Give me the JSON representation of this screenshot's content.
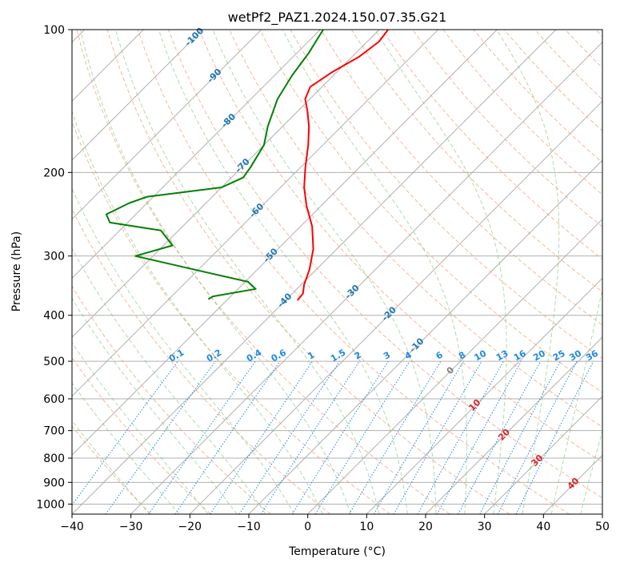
{
  "chart_data": {
    "type": "line",
    "diagram": "skew-T log-P",
    "title": "wetPf2_PAZ1.2024.150.07.35.G21",
    "xlabel": "Temperature (°C)",
    "ylabel": "Pressure (hPa)",
    "xlim": [
      -40,
      50
    ],
    "ylim": [
      1050,
      100
    ],
    "y_scale": "log",
    "x_ticks": [
      -40,
      -30,
      -20,
      -10,
      0,
      10,
      20,
      30,
      40,
      50
    ],
    "y_ticks": [
      100,
      200,
      300,
      400,
      500,
      600,
      700,
      800,
      900,
      1000
    ],
    "grid": true,
    "colors": {
      "temperature": "#ff0000",
      "dewpoint": "#008000",
      "isotherm": "#b0b0b0",
      "dry_adiabat": "#f4a582",
      "moist_adiabat": "#74c476",
      "mixing_ratio": "#1e88e5",
      "isotherm_label_negative": "#1f77b4",
      "isotherm_label_positive": "#d62728",
      "zero_isotherm_label": "#808080"
    },
    "series": [
      {
        "role": "temperature",
        "points": [
          {
            "p": 372,
            "t": -38.0
          },
          {
            "p": 360,
            "t": -38.2
          },
          {
            "p": 345,
            "t": -39.5
          },
          {
            "p": 320,
            "t": -41.2
          },
          {
            "p": 290,
            "t": -44.0
          },
          {
            "p": 260,
            "t": -48.0
          },
          {
            "p": 235,
            "t": -52.5
          },
          {
            "p": 215,
            "t": -56.0
          },
          {
            "p": 195,
            "t": -59.2
          },
          {
            "p": 175,
            "t": -62.5
          },
          {
            "p": 160,
            "t": -65.5
          },
          {
            "p": 148,
            "t": -68.5
          },
          {
            "p": 140,
            "t": -70.8
          },
          {
            "p": 132,
            "t": -72.0
          },
          {
            "p": 123,
            "t": -70.8
          },
          {
            "p": 114,
            "t": -68.8
          },
          {
            "p": 106,
            "t": -68.0
          },
          {
            "p": 100,
            "t": -68.5
          }
        ]
      },
      {
        "role": "dewpoint",
        "points": [
          {
            "p": 370,
            "t": -53.3
          },
          {
            "p": 365,
            "t": -53.0
          },
          {
            "p": 352,
            "t": -47.0
          },
          {
            "p": 340,
            "t": -49.5
          },
          {
            "p": 325,
            "t": -58.0
          },
          {
            "p": 300,
            "t": -73.0
          },
          {
            "p": 285,
            "t": -68.5
          },
          {
            "p": 265,
            "t": -73.0
          },
          {
            "p": 255,
            "t": -83.0
          },
          {
            "p": 245,
            "t": -85.0
          },
          {
            "p": 232,
            "t": -83.0
          },
          {
            "p": 225,
            "t": -81.0
          },
          {
            "p": 215,
            "t": -70.0
          },
          {
            "p": 205,
            "t": -68.0
          },
          {
            "p": 195,
            "t": -68.5
          },
          {
            "p": 175,
            "t": -70.0
          },
          {
            "p": 160,
            "t": -72.5
          },
          {
            "p": 140,
            "t": -75.5
          },
          {
            "p": 125,
            "t": -77.0
          },
          {
            "p": 112,
            "t": -78.0
          },
          {
            "p": 100,
            "t": -79.5
          }
        ]
      }
    ],
    "isotherm_labels": [
      -100,
      -90,
      -80,
      -70,
      -60,
      -50,
      -40,
      -30,
      -20,
      -10,
      0,
      10,
      20,
      30,
      40
    ],
    "mixing_ratio_labels": [
      "0.1",
      "0.2",
      "0.4",
      "0.6",
      "1",
      "1.5",
      "2",
      "3",
      "4",
      "6",
      "8",
      "10",
      "13",
      "16",
      "20",
      "25",
      "30",
      "36"
    ]
  }
}
